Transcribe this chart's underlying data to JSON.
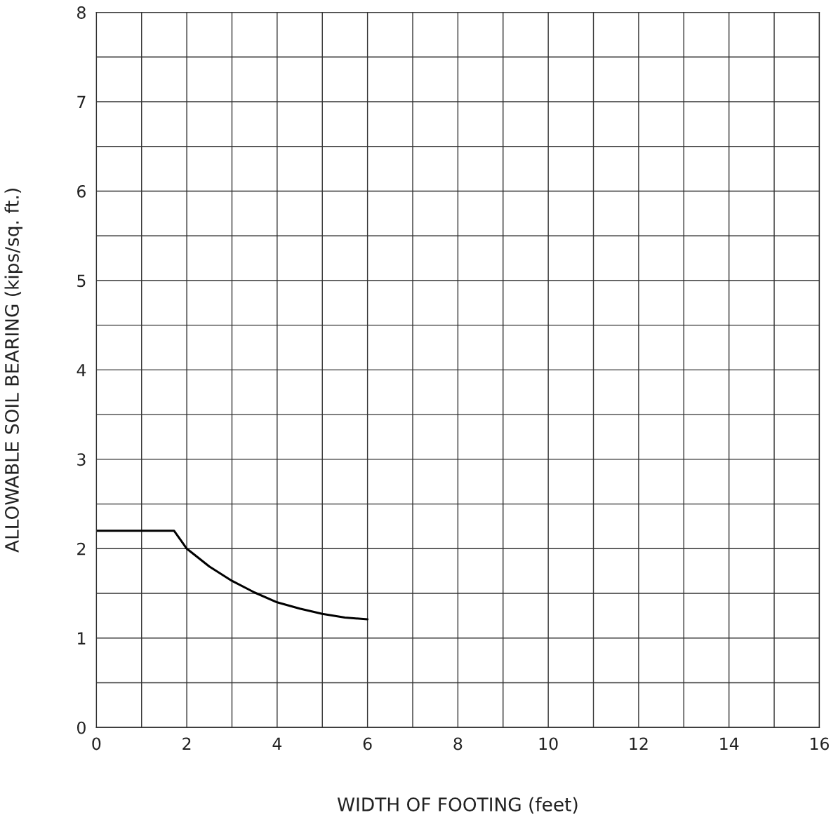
{
  "chart_data": {
    "type": "line",
    "xlabel": "WIDTH OF FOOTING (feet)",
    "ylabel": "ALLOWABLE SOIL BEARING (kips/sq. ft.)",
    "series": [
      {
        "color": "#000000",
        "x": [
          0,
          1.72,
          2,
          2.5,
          3,
          3.5,
          4,
          4.5,
          5,
          5.5,
          6
        ],
        "values": [
          2.2,
          2.2,
          2.0,
          1.8,
          1.64,
          1.51,
          1.4,
          1.33,
          1.27,
          1.23,
          1.21
        ]
      }
    ],
    "xlim": [
      0,
      16
    ],
    "ylim": [
      0,
      8
    ],
    "xticks": [
      0,
      {
        "value": 1,
        "label": null
      },
      2,
      {
        "value": 3,
        "label": null
      },
      4,
      {
        "value": 5,
        "label": null
      },
      6,
      {
        "value": 7,
        "label": null
      },
      8,
      {
        "value": 9,
        "label": null
      },
      10,
      {
        "value": 11,
        "label": null
      },
      12,
      {
        "value": 13,
        "label": null
      },
      14,
      {
        "value": 15,
        "label": null
      },
      16
    ],
    "yticks": [
      0,
      {
        "value": 0.5,
        "label": null
      },
      1,
      {
        "value": 1.5,
        "label": null
      },
      2,
      {
        "value": 2.5,
        "label": null
      },
      3,
      {
        "value": 3.5,
        "label": null
      },
      4,
      {
        "value": 4.5,
        "label": null
      },
      5,
      {
        "value": 5.5,
        "label": null
      },
      6,
      {
        "value": 6.5,
        "label": null
      },
      7,
      {
        "value": 7.5,
        "label": null
      },
      8
    ],
    "grid": true,
    "marker": "none",
    "line_style": "solid"
  }
}
